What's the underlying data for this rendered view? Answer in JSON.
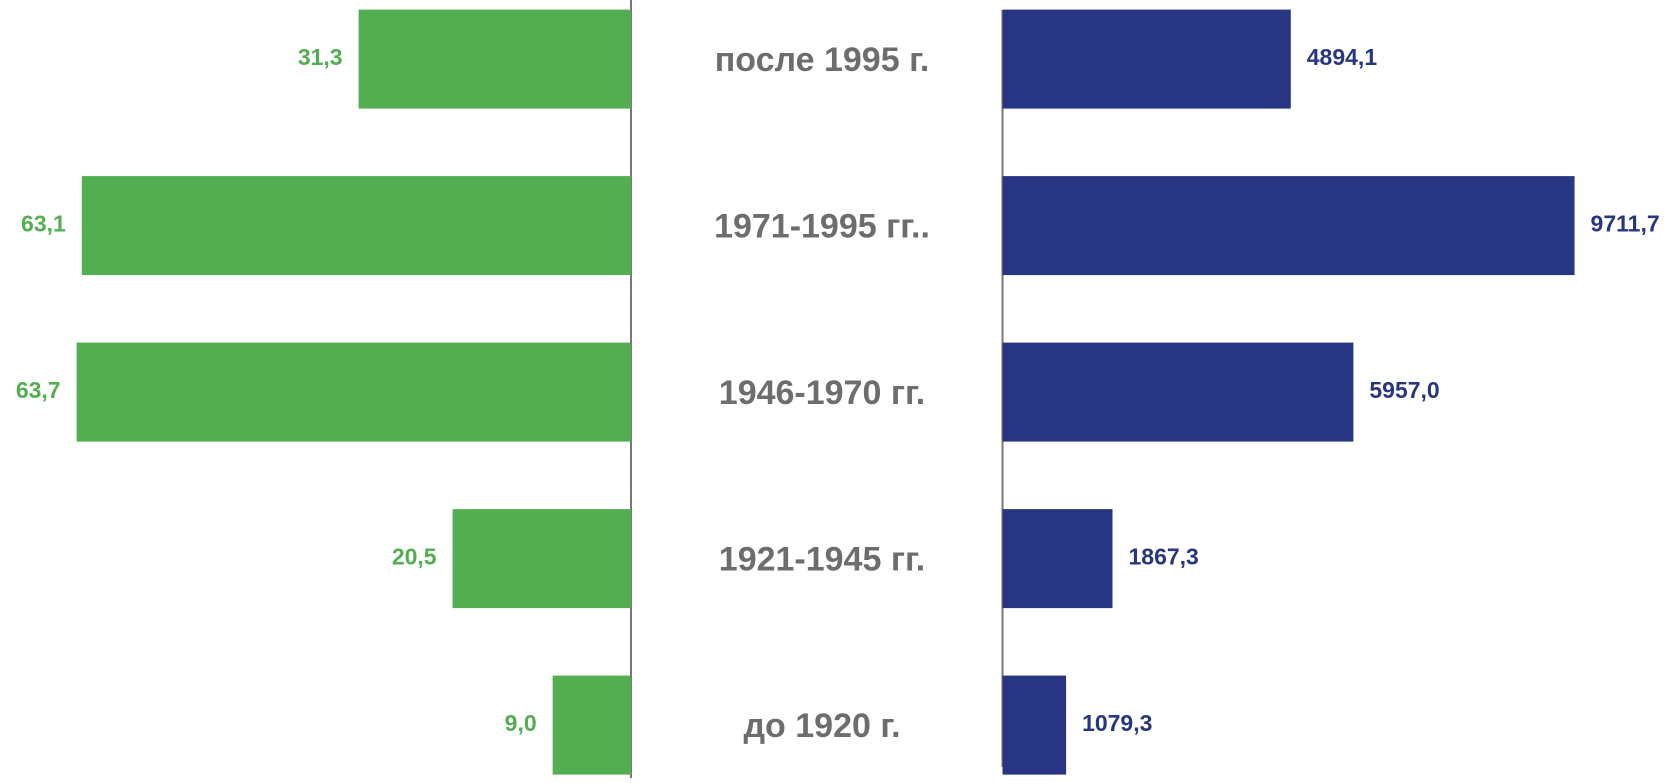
{
  "chart_data": {
    "type": "bar",
    "orientation": "horizontal",
    "categories": [
      "после 1995 г.",
      "1971-1995 гг..",
      "1946-1970 гг.",
      "1921-1945 гг.",
      "до 1920 г."
    ],
    "series": [
      {
        "color": "#52ae50",
        "values": [
          31.3,
          63.1,
          63.7,
          20.5,
          9.0
        ],
        "value_labels": [
          "31,3",
          "63,1",
          "63,7",
          "20,5",
          "9,0"
        ],
        "xlim": [
          0,
          72.5
        ]
      },
      {
        "color": "#283583",
        "values": [
          4894.1,
          9711.7,
          5957.0,
          1867.3,
          1079.3
        ],
        "value_labels": [
          "4894,1",
          "9711,7",
          "5957,0",
          "1867,3",
          "1079,3"
        ],
        "xlim": [
          0,
          11400
        ]
      }
    ]
  }
}
